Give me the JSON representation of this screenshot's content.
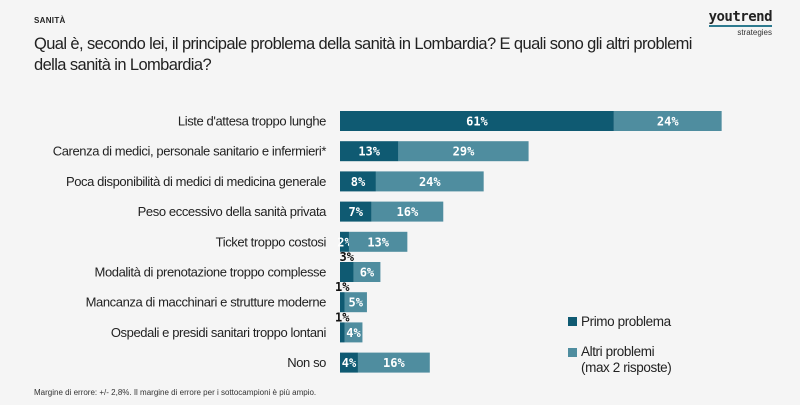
{
  "header": {
    "section": "SANITÀ",
    "title": "Qual è, secondo lei, il principale problema della sanità in Lombardia? E quali sono gli altri problemi della sanità in Lombardia?",
    "logo": {
      "name": "youtrend",
      "sub": "strategies"
    }
  },
  "footer": "Margine di errore: +/- 2,8%. Il margine di errore per i sottocampioni è più ampio.",
  "colors": {
    "primo": "#0f5a72",
    "altri": "#4f8d9f",
    "background": "#f5f5f5"
  },
  "chart_data": {
    "type": "bar",
    "orientation": "horizontal",
    "stacked": true,
    "unit": "%",
    "categories": [
      "Liste d'attesa troppo lunghe",
      "Carenza di medici, personale sanitario e infermieri*",
      "Poca disponibilità di medici di medicina generale",
      "Peso eccessivo della sanità privata",
      "Ticket troppo costosi",
      "Modalità di prenotazione troppo complesse",
      "Mancanza di macchinari e strutture moderne",
      "Ospedali e presidi sanitari troppo lontani",
      "Non so"
    ],
    "series": [
      {
        "name": "Primo problema",
        "values": [
          61,
          13,
          8,
          7,
          2,
          3,
          1,
          1,
          4
        ]
      },
      {
        "name": "Altri problemi\n(max 2 risposte)",
        "values": [
          24,
          29,
          24,
          16,
          13,
          6,
          5,
          4,
          16
        ]
      }
    ],
    "legend_placement": "bottom-right",
    "grid": false
  }
}
